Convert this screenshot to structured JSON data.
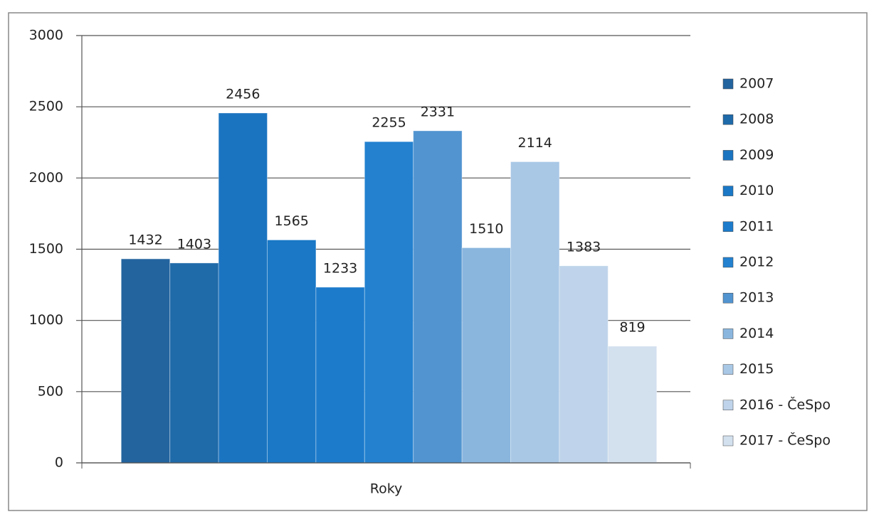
{
  "chart_data": {
    "type": "bar",
    "categories": [
      "Roky"
    ],
    "series": [
      {
        "name": "2007",
        "color": "#23649e",
        "values": [
          1432
        ]
      },
      {
        "name": "2008",
        "color": "#1f6aa9",
        "values": [
          1403
        ]
      },
      {
        "name": "2009",
        "color": "#1b74c0",
        "values": [
          2456
        ]
      },
      {
        "name": "2010",
        "color": "#1a78c6",
        "values": [
          1565
        ]
      },
      {
        "name": "2011",
        "color": "#1d7bcc",
        "values": [
          1233
        ]
      },
      {
        "name": "2012",
        "color": "#2381d0",
        "values": [
          2255
        ]
      },
      {
        "name": "2013",
        "color": "#5194d0",
        "values": [
          2331
        ]
      },
      {
        "name": "2014",
        "color": "#8ab6de",
        "values": [
          1510
        ]
      },
      {
        "name": "2015",
        "color": "#a9c8e6",
        "values": [
          2114
        ]
      },
      {
        "name": "2016 - ČeSpo",
        "color": "#bfd4ea",
        "values": [
          1383
        ]
      },
      {
        "name": "2017 - ČeSpo",
        "color": "#d3e0ee",
        "values": [
          819
        ]
      }
    ],
    "ylim": [
      0,
      3000
    ],
    "yticks": [
      0,
      500,
      1000,
      1500,
      2000,
      2500,
      3000
    ],
    "grid": true,
    "legend": "right"
  }
}
